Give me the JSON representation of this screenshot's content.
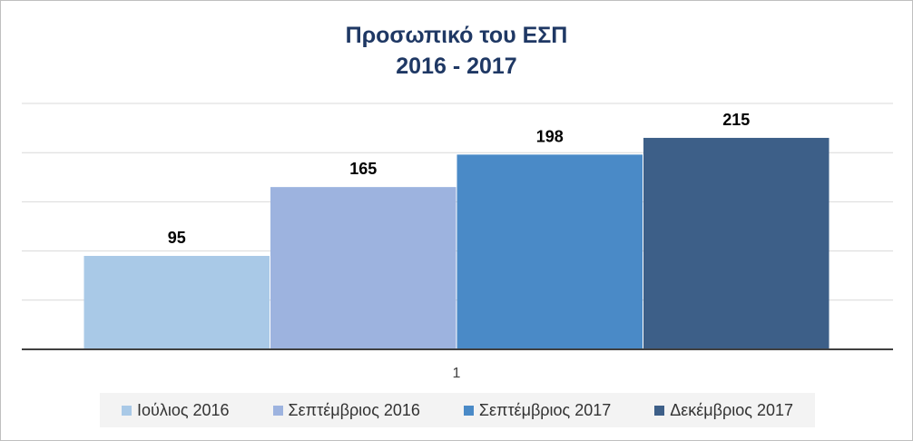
{
  "chart_data": {
    "type": "bar",
    "title": [
      "Προσωπικό του ΕΣΠ",
      "2016 - 2017"
    ],
    "categories": [
      "1"
    ],
    "series": [
      {
        "name": "Ιούλιος 2016",
        "values": [
          95
        ],
        "color": "#a9c9e7"
      },
      {
        "name": "Σεπτέμβριος 2016",
        "values": [
          165
        ],
        "color": "#9db3df"
      },
      {
        "name": "Σεπτέμβριος 2017",
        "values": [
          198
        ],
        "color": "#4a8ac7"
      },
      {
        "name": "Δεκέμβριος 2017",
        "values": [
          215
        ],
        "color": "#3d5f88"
      }
    ],
    "ylim": [
      0,
      250
    ],
    "y_gridlines": [
      0,
      50,
      100,
      150,
      200,
      250
    ],
    "y_tick_labels_shown": false,
    "grid": true,
    "data_labels": true,
    "legend_position": "bottom",
    "title_color": "#1f3864",
    "gridline_color": "#d9d9d9",
    "axis_color": "#404040"
  }
}
